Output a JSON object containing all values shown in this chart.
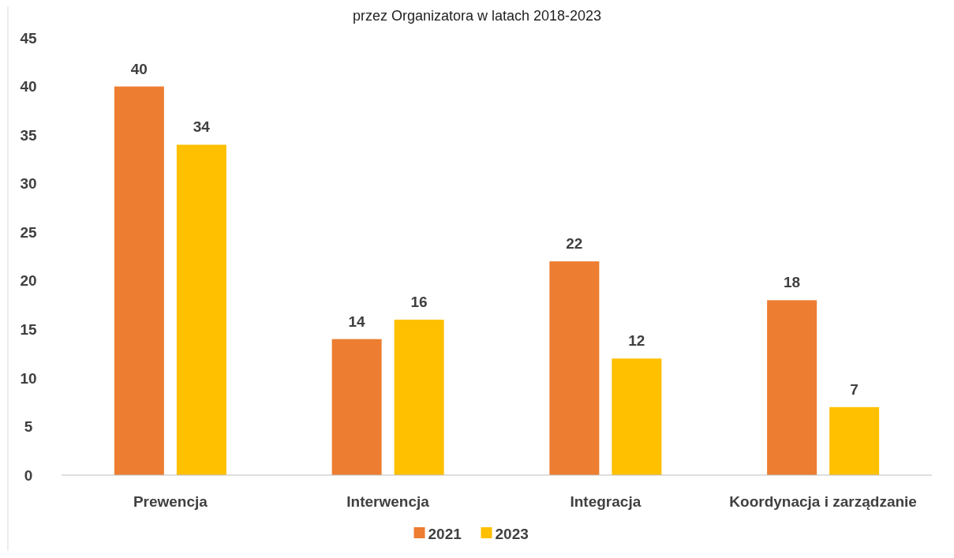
{
  "chart_data": {
    "type": "bar",
    "title": "przez Organizatora w latach 2018-2023",
    "categories": [
      "Prewencja",
      "Interwencja",
      "Integracja",
      "Koordynacja i zarządzanie"
    ],
    "series": [
      {
        "name": "2021",
        "color": "#ed7d31",
        "values": [
          40,
          14,
          22,
          18
        ]
      },
      {
        "name": "2023",
        "color": "#ffc000",
        "values": [
          34,
          16,
          12,
          7
        ]
      }
    ],
    "ylim": [
      0,
      45
    ],
    "yticks": [
      0,
      5,
      10,
      15,
      20,
      25,
      30,
      35,
      40,
      45
    ],
    "grid": false,
    "legend": "bottom",
    "data_labels": true
  }
}
